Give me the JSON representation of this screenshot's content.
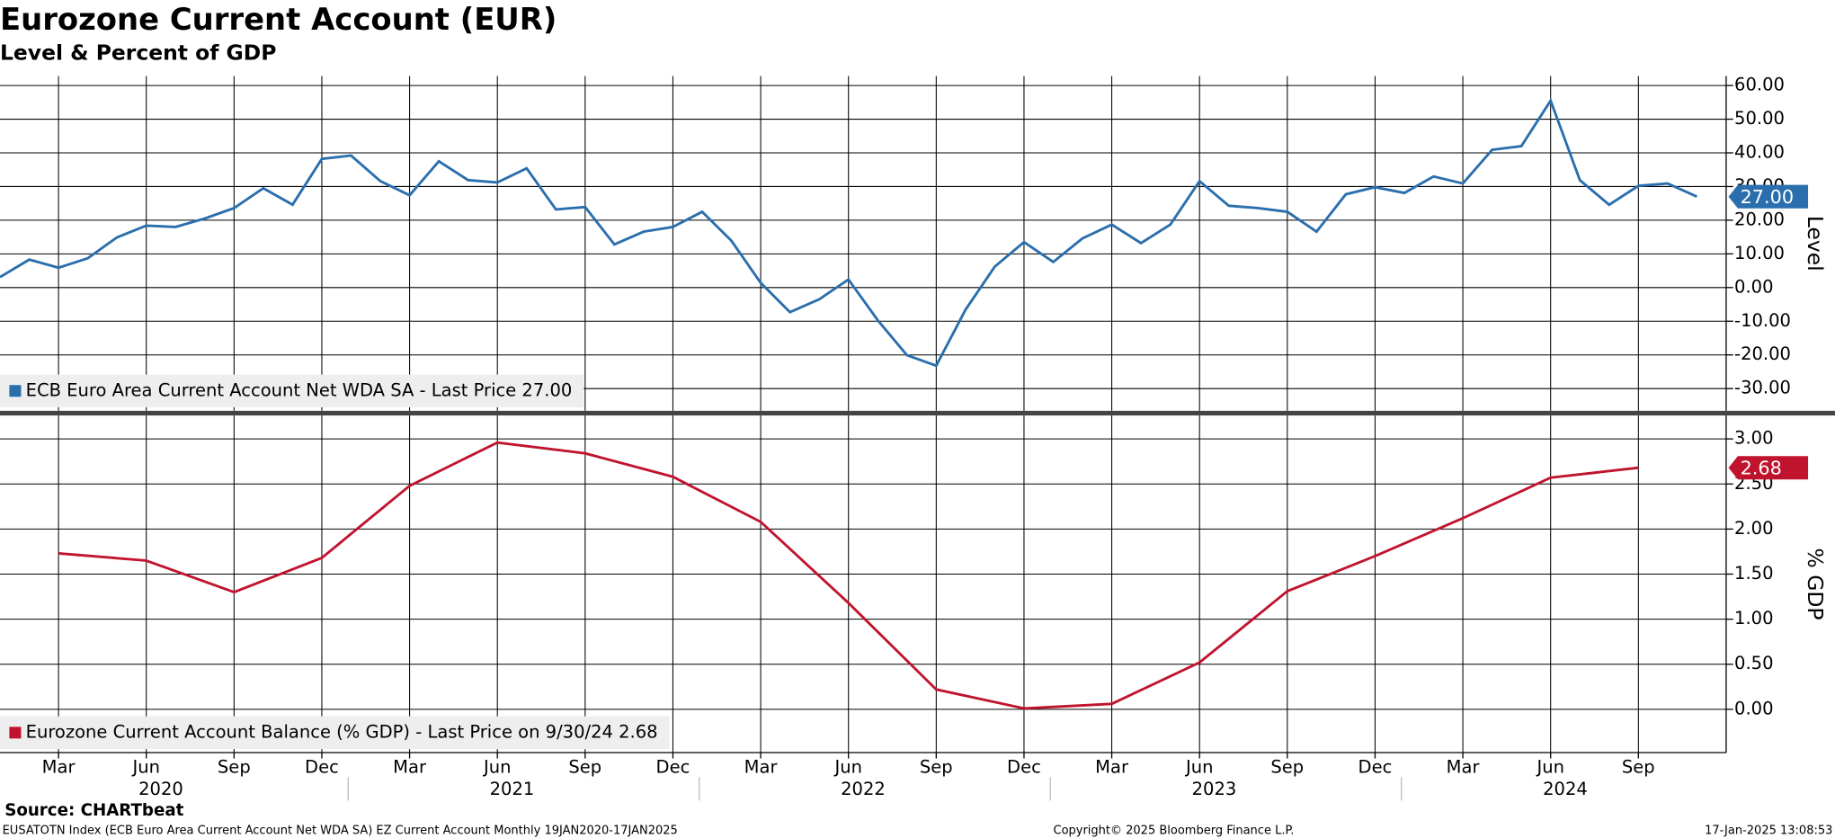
{
  "chart_data": [
    {
      "type": "line",
      "title": "Eurozone Current Account (EUR)",
      "subtitle": "Level & Percent of GDP",
      "ylabel": "Level",
      "x": [
        "2020-01",
        "2020-02",
        "2020-03",
        "2020-04",
        "2020-05",
        "2020-06",
        "2020-07",
        "2020-08",
        "2020-09",
        "2020-10",
        "2020-11",
        "2020-12",
        "2021-01",
        "2021-02",
        "2021-03",
        "2021-04",
        "2021-05",
        "2021-06",
        "2021-07",
        "2021-08",
        "2021-09",
        "2021-10",
        "2021-11",
        "2021-12",
        "2022-01",
        "2022-02",
        "2022-03",
        "2022-04",
        "2022-05",
        "2022-06",
        "2022-07",
        "2022-08",
        "2022-09",
        "2022-10",
        "2022-11",
        "2022-12",
        "2023-01",
        "2023-02",
        "2023-03",
        "2023-04",
        "2023-05",
        "2023-06",
        "2023-07",
        "2023-08",
        "2023-09",
        "2023-10",
        "2023-11",
        "2023-12",
        "2024-01",
        "2024-02",
        "2024-03",
        "2024-04",
        "2024-05",
        "2024-06",
        "2024-07",
        "2024-08",
        "2024-09",
        "2024-10",
        "2024-11"
      ],
      "series": [
        {
          "name": "ECB Euro Area Current Account Net WDA SA - Last Price 27.00",
          "color": "#2a6ead",
          "values": [
            3.1,
            8.3,
            5.9,
            8.7,
            14.9,
            18.4,
            18.0,
            20.5,
            23.6,
            29.5,
            24.6,
            38.2,
            39.2,
            31.6,
            27.4,
            37.5,
            31.9,
            31.2,
            35.4,
            23.2,
            23.9,
            12.8,
            16.6,
            18.0,
            22.5,
            13.9,
            1.4,
            -7.3,
            -3.5,
            2.4,
            -9.7,
            -20.1,
            -23.2,
            -6.6,
            6.2,
            13.5,
            7.6,
            14.6,
            18.7,
            13.2,
            18.7,
            31.6,
            24.3,
            23.6,
            22.5,
            16.6,
            27.7,
            29.8,
            28.1,
            33.0,
            30.9,
            40.9,
            42.0,
            55.5,
            31.9,
            24.6,
            30.2,
            30.9,
            27.0
          ],
          "last_label": "27.00"
        }
      ],
      "xlim": [
        "2020-01",
        "2024-12"
      ],
      "ylim": [
        -36.6,
        62.8
      ],
      "yticks": [
        {
          "value": 60,
          "label": "60.00"
        },
        {
          "value": 50,
          "label": "50.00"
        },
        {
          "value": 40,
          "label": "40.00"
        },
        {
          "value": 30,
          "label": "30.00"
        },
        {
          "value": 20,
          "label": "20.00"
        },
        {
          "value": 10,
          "label": "10.00"
        },
        {
          "value": 0,
          "label": "0.00"
        },
        {
          "value": -10,
          "label": "-10.00"
        },
        {
          "value": -20,
          "label": "-20.00"
        },
        {
          "value": -30,
          "label": "-30.00"
        }
      ],
      "grid": true
    },
    {
      "type": "line",
      "ylabel": "% GDP",
      "x": [
        "2020-03",
        "2020-06",
        "2020-09",
        "2020-12",
        "2021-03",
        "2021-06",
        "2021-09",
        "2021-12",
        "2022-03",
        "2022-06",
        "2022-09",
        "2022-12",
        "2023-03",
        "2023-06",
        "2023-09",
        "2023-12",
        "2024-03",
        "2024-06",
        "2024-09"
      ],
      "series": [
        {
          "name": "Eurozone Current Account Balance (% GDP) - Last Price on 9/30/24 2.68",
          "color": "#c0142e",
          "values": [
            1.73,
            1.65,
            1.3,
            1.68,
            2.48,
            2.96,
            2.84,
            2.58,
            2.08,
            1.18,
            0.22,
            0.01,
            0.06,
            0.52,
            1.31,
            1.7,
            2.12,
            2.57,
            2.68
          ],
          "last_label": "2.68"
        }
      ],
      "xlim": [
        "2020-01",
        "2024-12"
      ],
      "ylim": [
        -0.48,
        3.26
      ],
      "yticks": [
        {
          "value": 3,
          "label": "3.00"
        },
        {
          "value": 2.5,
          "label": "2.50"
        },
        {
          "value": 2,
          "label": "2.00"
        },
        {
          "value": 1.5,
          "label": "1.50"
        },
        {
          "value": 1,
          "label": "1.00"
        },
        {
          "value": 0.5,
          "label": "0.50"
        },
        {
          "value": 0,
          "label": "0.00"
        }
      ],
      "grid": true,
      "xticks": [
        {
          "value": "2020-03",
          "label": "Mar"
        },
        {
          "value": "2020-06",
          "label": "Jun"
        },
        {
          "value": "2020-09",
          "label": "Sep"
        },
        {
          "value": "2020-12",
          "label": "Dec"
        },
        {
          "value": "2021-03",
          "label": "Mar"
        },
        {
          "value": "2021-06",
          "label": "Jun"
        },
        {
          "value": "2021-09",
          "label": "Sep"
        },
        {
          "value": "2021-12",
          "label": "Dec"
        },
        {
          "value": "2022-03",
          "label": "Mar"
        },
        {
          "value": "2022-06",
          "label": "Jun"
        },
        {
          "value": "2022-09",
          "label": "Sep"
        },
        {
          "value": "2022-12",
          "label": "Dec"
        },
        {
          "value": "2023-03",
          "label": "Mar"
        },
        {
          "value": "2023-06",
          "label": "Jun"
        },
        {
          "value": "2023-09",
          "label": "Sep"
        },
        {
          "value": "2023-12",
          "label": "Dec"
        },
        {
          "value": "2024-03",
          "label": "Mar"
        },
        {
          "value": "2024-06",
          "label": "Jun"
        },
        {
          "value": "2024-09",
          "label": "Sep"
        }
      ],
      "year_labels": [
        "2020",
        "2021",
        "2022",
        "2023",
        "2024"
      ]
    }
  ],
  "footer": {
    "source": "Source: CHARTbeat",
    "description": "EUSATOTN Index (ECB Euro Area Current Account Net WDA SA) EZ Current Account  Monthly 19JAN2020-17JAN2025",
    "copyright": "Copyright© 2025 Bloomberg Finance L.P.",
    "timestamp": "17-Jan-2025 13:08:53"
  }
}
